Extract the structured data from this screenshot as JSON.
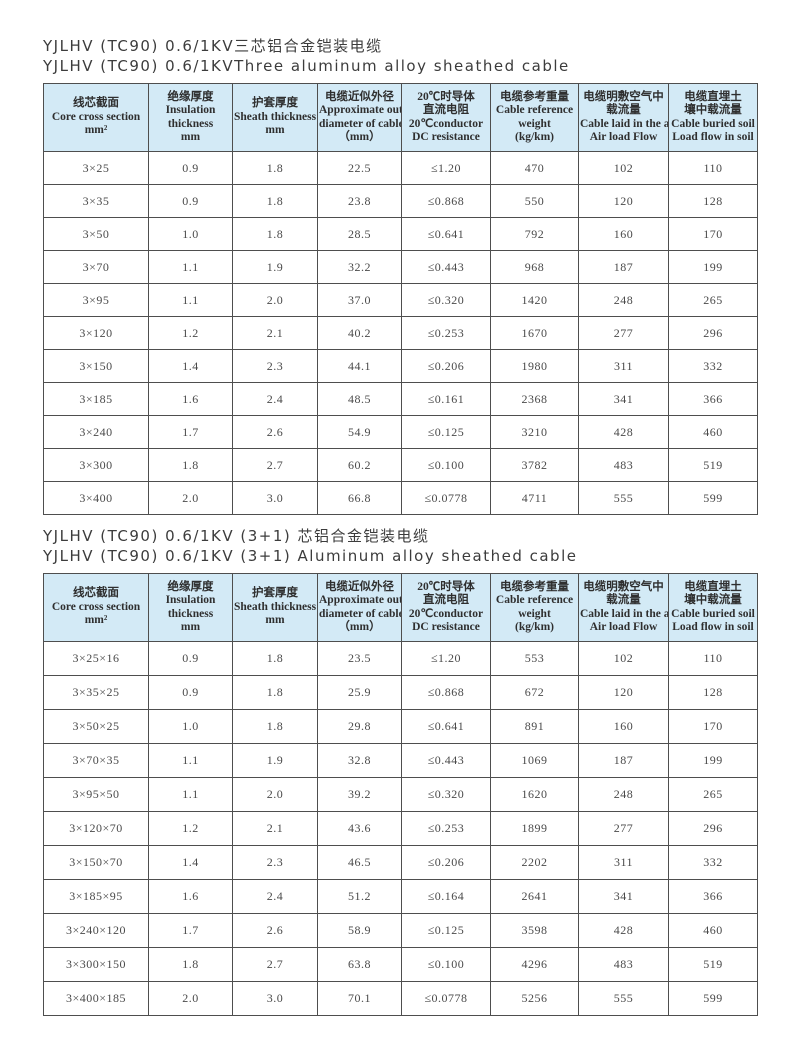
{
  "colors": {
    "header_bg": "#d3eaf6",
    "border": "#4e4e4e",
    "title_text": "#3c3c3c",
    "cell_text": "#4a4a4a"
  },
  "header": {
    "columns": [
      {
        "name": "core-cross-section",
        "lines": [
          "线芯截面",
          "Core cross section",
          "mm²"
        ]
      },
      {
        "name": "insulation-thickness",
        "lines": [
          "绝缘厚度",
          "Insulation",
          "thickness",
          "mm"
        ]
      },
      {
        "name": "sheath-thickness",
        "lines": [
          "护套厚度",
          "Sheath thickness",
          "mm"
        ]
      },
      {
        "name": "outer-diameter",
        "lines": [
          "电缆近似外径",
          "Approximate outer",
          "diameter of cable",
          "（mm）"
        ]
      },
      {
        "name": "dc-resistance",
        "lines": [
          "20℃时导体",
          "直流电阻",
          "20℃conductor",
          "DC resistance"
        ]
      },
      {
        "name": "reference-weight",
        "lines": [
          "电缆参考重量",
          "Cable reference",
          "weight",
          "(kg/km)"
        ]
      },
      {
        "name": "air-load-flow",
        "lines": [
          "电缆明敷空气中",
          "载流量",
          "Cable laid in the air",
          "Air load Flow"
        ]
      },
      {
        "name": "buried-load-flow",
        "lines": [
          "电缆直埋土",
          "壤中载流量",
          "Cable buried soil",
          "Load flow in soil"
        ]
      }
    ]
  },
  "tables": [
    {
      "title_zh": "YJLHV (TC90) 0.6/1KV三芯铝合金铠装电缆",
      "title_en": "YJLHV (TC90) 0.6/1KVThree aluminum alloy sheathed cable",
      "rows": [
        [
          "3×25",
          "0.9",
          "1.8",
          "22.5",
          "≤1.20",
          "470",
          "102",
          "110"
        ],
        [
          "3×35",
          "0.9",
          "1.8",
          "23.8",
          "≤0.868",
          "550",
          "120",
          "128"
        ],
        [
          "3×50",
          "1.0",
          "1.8",
          "28.5",
          "≤0.641",
          "792",
          "160",
          "170"
        ],
        [
          "3×70",
          "1.1",
          "1.9",
          "32.2",
          "≤0.443",
          "968",
          "187",
          "199"
        ],
        [
          "3×95",
          "1.1",
          "2.0",
          "37.0",
          "≤0.320",
          "1420",
          "248",
          "265"
        ],
        [
          "3×120",
          "1.2",
          "2.1",
          "40.2",
          "≤0.253",
          "1670",
          "277",
          "296"
        ],
        [
          "3×150",
          "1.4",
          "2.3",
          "44.1",
          "≤0.206",
          "1980",
          "311",
          "332"
        ],
        [
          "3×185",
          "1.6",
          "2.4",
          "48.5",
          "≤0.161",
          "2368",
          "341",
          "366"
        ],
        [
          "3×240",
          "1.7",
          "2.6",
          "54.9",
          "≤0.125",
          "3210",
          "428",
          "460"
        ],
        [
          "3×300",
          "1.8",
          "2.7",
          "60.2",
          "≤0.100",
          "3782",
          "483",
          "519"
        ],
        [
          "3×400",
          "2.0",
          "3.0",
          "66.8",
          "≤0.0778",
          "4711",
          "555",
          "599"
        ]
      ]
    },
    {
      "title_zh": "YJLHV (TC90) 0.6/1KV (3+1) 芯铝合金铠装电缆",
      "title_en": "YJLHV (TC90) 0.6/1KV (3+1) Aluminum alloy sheathed cable",
      "rows": [
        [
          "3×25×16",
          "0.9",
          "1.8",
          "23.5",
          "≤1.20",
          "553",
          "102",
          "110"
        ],
        [
          "3×35×25",
          "0.9",
          "1.8",
          "25.9",
          "≤0.868",
          "672",
          "120",
          "128"
        ],
        [
          "3×50×25",
          "1.0",
          "1.8",
          "29.8",
          "≤0.641",
          "891",
          "160",
          "170"
        ],
        [
          "3×70×35",
          "1.1",
          "1.9",
          "32.8",
          "≤0.443",
          "1069",
          "187",
          "199"
        ],
        [
          "3×95×50",
          "1.1",
          "2.0",
          "39.2",
          "≤0.320",
          "1620",
          "248",
          "265"
        ],
        [
          "3×120×70",
          "1.2",
          "2.1",
          "43.6",
          "≤0.253",
          "1899",
          "277",
          "296"
        ],
        [
          "3×150×70",
          "1.4",
          "2.3",
          "46.5",
          "≤0.206",
          "2202",
          "311",
          "332"
        ],
        [
          "3×185×95",
          "1.6",
          "2.4",
          "51.2",
          "≤0.164",
          "2641",
          "341",
          "366"
        ],
        [
          "3×240×120",
          "1.7",
          "2.6",
          "58.9",
          "≤0.125",
          "3598",
          "428",
          "460"
        ],
        [
          "3×300×150",
          "1.8",
          "2.7",
          "63.8",
          "≤0.100",
          "4296",
          "483",
          "519"
        ],
        [
          "3×400×185",
          "2.0",
          "3.0",
          "70.1",
          "≤0.0778",
          "5256",
          "555",
          "599"
        ]
      ]
    }
  ]
}
